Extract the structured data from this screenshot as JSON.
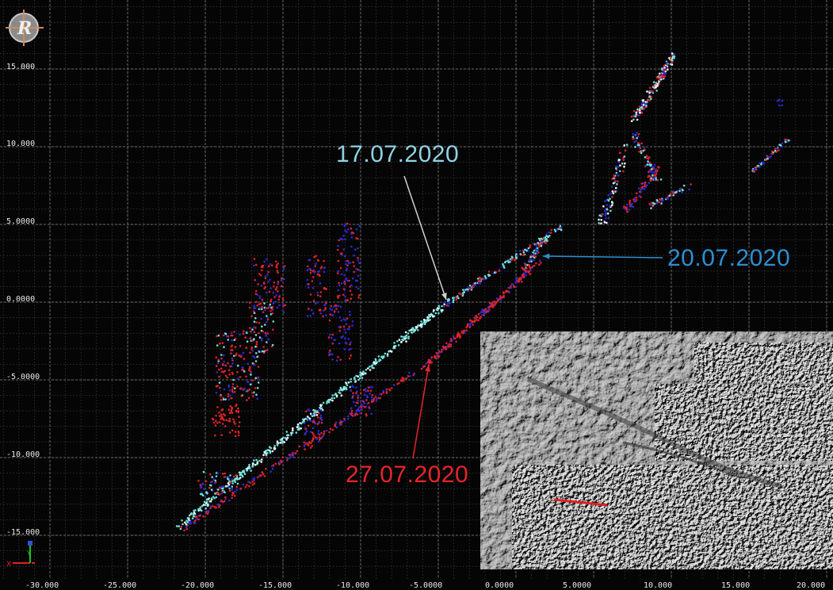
{
  "viewer": {
    "y_axis_labels": [
      "15.000",
      "10.000",
      "5.0000",
      "0.0000",
      "-5.0000",
      "-10.000",
      "-15.000"
    ],
    "x_axis_labels": [
      "-30.000",
      "-25.000",
      "-20.000",
      "-15.000",
      "-10.000",
      "-5.0000",
      "0.0000",
      "5.0000",
      "10.000",
      "15.000",
      "20.000"
    ],
    "grid": true
  },
  "annotations": [
    {
      "label": "17.07.2020",
      "color": "#8ed3e3"
    },
    {
      "label": "20.07.2020",
      "color": "#2e8ed0"
    },
    {
      "label": "27.07.2020",
      "color": "#e8242a"
    }
  ],
  "colors": {
    "series_cyan": "#6ee0da",
    "series_red": "#e02228",
    "series_blue": "#2b2bd0",
    "background": "#050505",
    "grid": "#6a6a6a"
  },
  "icons": {
    "logo": "company-logo",
    "axes": "axis-triad-icon"
  },
  "inset": {
    "description_icon": "hillshade-terrain-image"
  }
}
